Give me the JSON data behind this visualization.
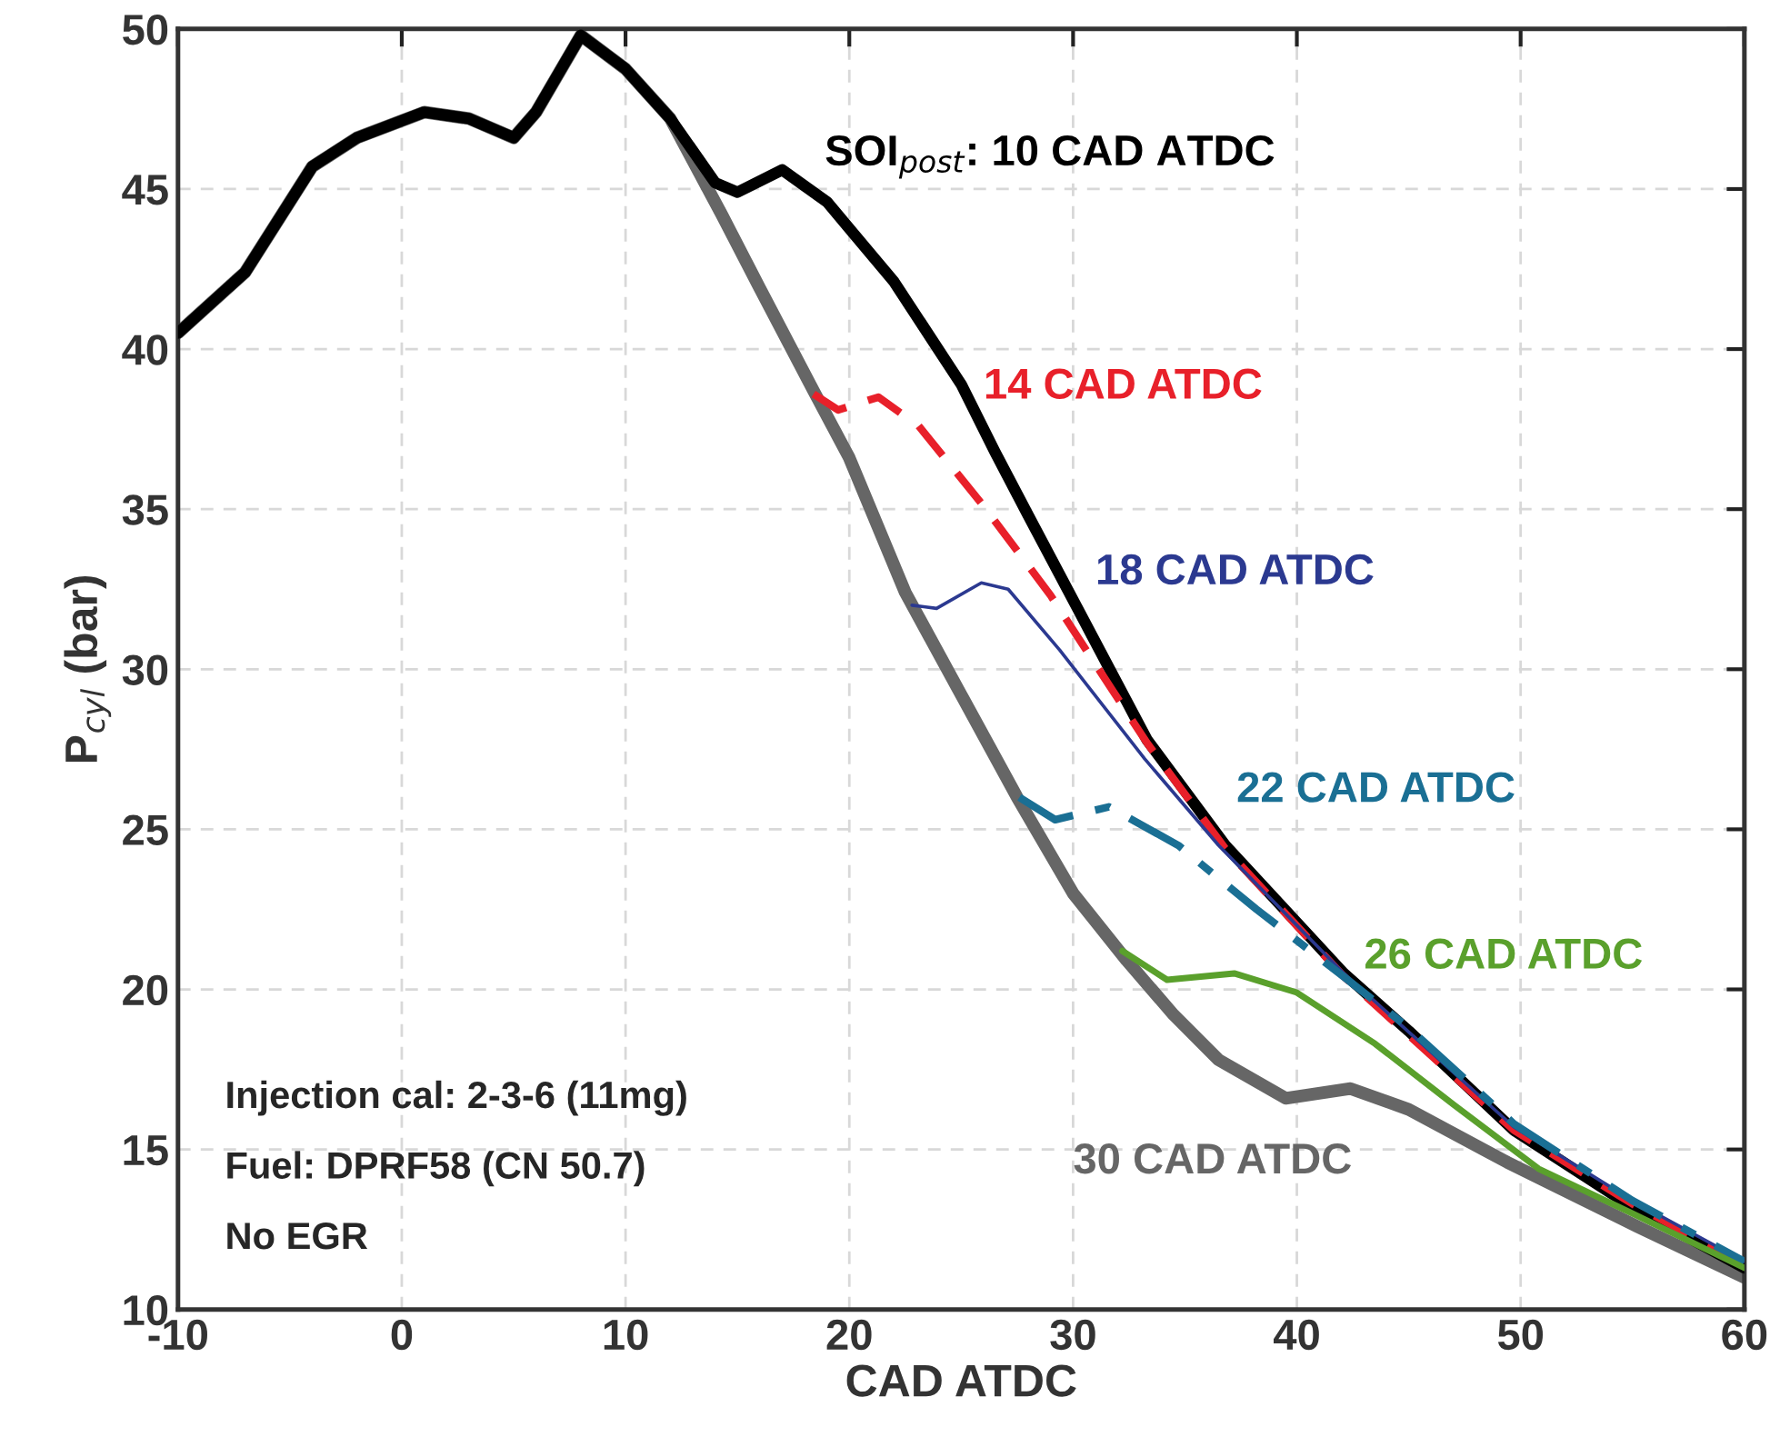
{
  "chart_data": {
    "type": "line",
    "xlabel": "CAD ATDC",
    "ylabel": "P$_{cyl}$ (bar)",
    "xlim": [
      -10,
      60
    ],
    "ylim": [
      10,
      50
    ],
    "xticks": [
      -10,
      0,
      10,
      20,
      30,
      40,
      50,
      60
    ],
    "yticks": [
      10,
      15,
      20,
      25,
      30,
      35,
      40,
      45,
      50
    ],
    "grid": true,
    "marker": "none",
    "series": [
      {
        "name": "30 CAD ATDC",
        "color": "#666666",
        "line_style": "solid",
        "x": [
          -10,
          -7,
          -4,
          -2,
          1,
          3,
          5,
          6,
          8,
          10,
          12,
          14.3,
          16,
          18.4,
          20,
          22.5,
          25,
          27.5,
          30,
          32.4,
          34.5,
          36.5,
          39.5,
          42.4,
          45,
          49.4,
          55.2,
          60
        ],
        "values": [
          40.5,
          42.4,
          45.7,
          46.6,
          47.4,
          47.2,
          46.6,
          47.4,
          49.8,
          48.75,
          47.2,
          44.2,
          41.9,
          38.7,
          36.6,
          32.4,
          29.2,
          26.0,
          23.0,
          20.9,
          19.2,
          17.8,
          16.6,
          16.9,
          16.25,
          14.6,
          12.6,
          11.0
        ]
      },
      {
        "name": "SOI$_{post}$: 10 CAD ATDC",
        "color": "#000000",
        "line_style": "solid",
        "x": [
          -10,
          -7,
          -4,
          -2,
          1,
          3,
          5,
          6,
          8,
          10,
          12,
          14,
          15,
          17,
          19,
          22,
          25,
          26.5,
          28,
          30.2,
          33.3,
          36.8,
          42.1,
          45,
          49.7,
          55,
          60
        ],
        "values": [
          40.5,
          42.4,
          45.7,
          46.6,
          47.4,
          47.2,
          46.6,
          47.4,
          49.8,
          48.75,
          47.2,
          45.2,
          44.9,
          45.6,
          44.6,
          42.1,
          38.9,
          36.8,
          34.8,
          31.9,
          27.8,
          24.5,
          20.5,
          18.7,
          15.6,
          13.2,
          11.3
        ]
      },
      {
        "name": "14 CAD ATDC",
        "color": "#e8202a",
        "line_style": "dashed",
        "x": [
          18.4,
          19.5,
          21.3,
          23.1,
          26.0,
          29.0,
          31.8,
          33.3,
          36.8,
          42.1,
          49.7,
          55,
          60
        ],
        "values": [
          38.6,
          38.1,
          38.5,
          37.6,
          35.1,
          32.3,
          29.3,
          27.7,
          24.4,
          20.4,
          15.6,
          13.3,
          11.4
        ]
      },
      {
        "name": "18 CAD ATDC",
        "color": "#2b3990",
        "line_style": "solid",
        "x": [
          22.8,
          23.9,
          25.9,
          27.1,
          29.4,
          33.2,
          36.5,
          42.1,
          49.7,
          55,
          60
        ],
        "values": [
          32.0,
          31.9,
          32.7,
          32.5,
          30.6,
          27.2,
          24.5,
          20.5,
          15.7,
          13.4,
          11.5
        ]
      },
      {
        "name": "22 CAD ATDC",
        "color": "#1a6f94",
        "line_style": "dashdot",
        "x": [
          27.6,
          29.2,
          31.6,
          34.7,
          38.2,
          41.9,
          45,
          49.7,
          55,
          60
        ],
        "values": [
          26.0,
          25.3,
          25.7,
          24.5,
          22.5,
          20.5,
          18.8,
          15.8,
          13.4,
          11.5
        ]
      },
      {
        "name": "26 CAD ATDC",
        "color": "#5aa02c",
        "line_style": "solid",
        "x": [
          32.2,
          34.2,
          37.2,
          40.0,
          43.5,
          47.0,
          50.8,
          55,
          60
        ],
        "values": [
          21.2,
          20.3,
          20.5,
          19.9,
          18.3,
          16.4,
          14.4,
          13.0,
          11.3
        ]
      }
    ],
    "annotations": [
      "Injection cal: 2-3-6 (11mg)",
      "Fuel: DPRF58 (CN 50.7)",
      "No EGR"
    ]
  }
}
